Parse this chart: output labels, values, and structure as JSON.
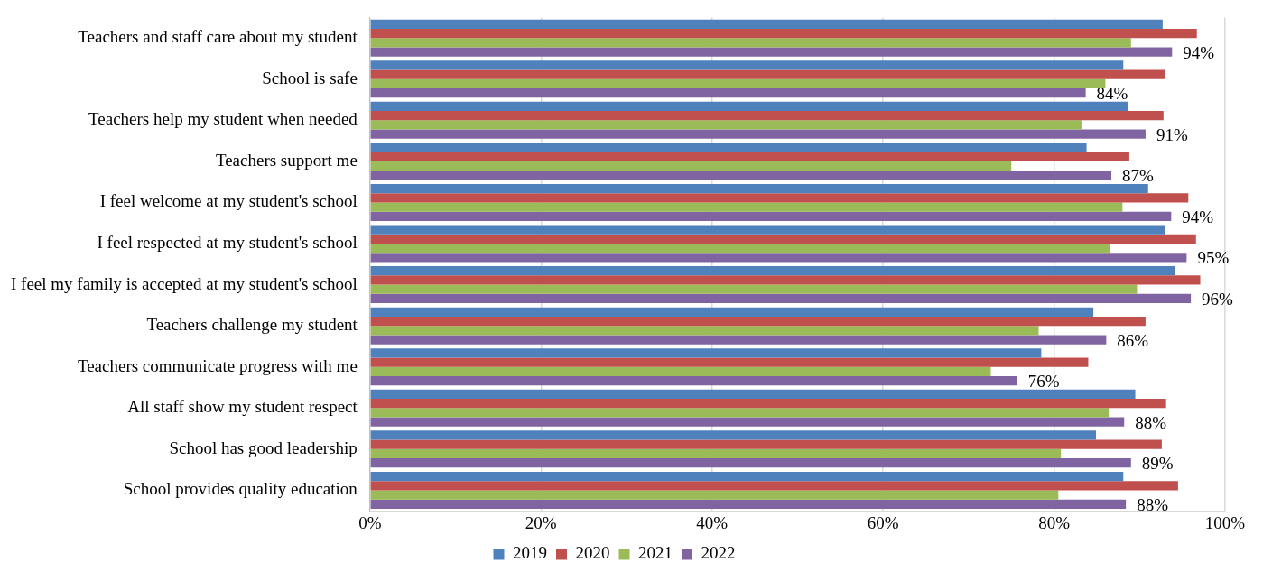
{
  "chart_data": {
    "type": "bar",
    "orientation": "horizontal",
    "categories": [
      "Teachers and staff care about my student",
      "School is safe",
      "Teachers help my student when needed",
      "Teachers support me",
      "I feel welcome at my student's school",
      "I feel respected at my student's school",
      "I feel my family is accepted at my student's school",
      "Teachers challenge my student",
      "Teachers communicate progress with me",
      "All staff show my student respect",
      "School has good leadership",
      "School provides quality education"
    ],
    "series": [
      {
        "name": "2019",
        "color": "#4f81bd",
        "values": [
          92.7,
          88.1,
          88.7,
          83.8,
          91.0,
          93.0,
          94.1,
          84.6,
          78.5,
          89.5,
          84.9,
          88.1
        ]
      },
      {
        "name": "2020",
        "color": "#c0504d",
        "values": [
          96.7,
          93.0,
          92.8,
          88.8,
          95.7,
          96.6,
          97.1,
          90.7,
          84.0,
          93.1,
          92.6,
          94.5
        ]
      },
      {
        "name": "2021",
        "color": "#9bbb59",
        "values": [
          89.0,
          86.0,
          83.2,
          75.0,
          88.0,
          86.5,
          89.7,
          78.2,
          72.6,
          86.4,
          80.8,
          80.5
        ]
      },
      {
        "name": "2022",
        "color": "#8064a2",
        "values": [
          93.8,
          83.7,
          90.7,
          86.7,
          93.7,
          95.5,
          96.0,
          86.1,
          75.7,
          88.2,
          89.0,
          88.4
        ],
        "value_labels": [
          "94%",
          "84%",
          "91%",
          "87%",
          "94%",
          "95%",
          "96%",
          "86%",
          "76%",
          "88%",
          "89%",
          "88%"
        ]
      }
    ],
    "xlim": [
      0,
      100
    ],
    "xticks": [
      {
        "value": 0,
        "label": "0%"
      },
      {
        "value": 20,
        "label": "20%"
      },
      {
        "value": 40,
        "label": "40%"
      },
      {
        "value": 60,
        "label": "60%"
      },
      {
        "value": 80,
        "label": "80%"
      },
      {
        "value": 100,
        "label": "100%"
      }
    ],
    "grid": "x",
    "legend": "bottom"
  }
}
